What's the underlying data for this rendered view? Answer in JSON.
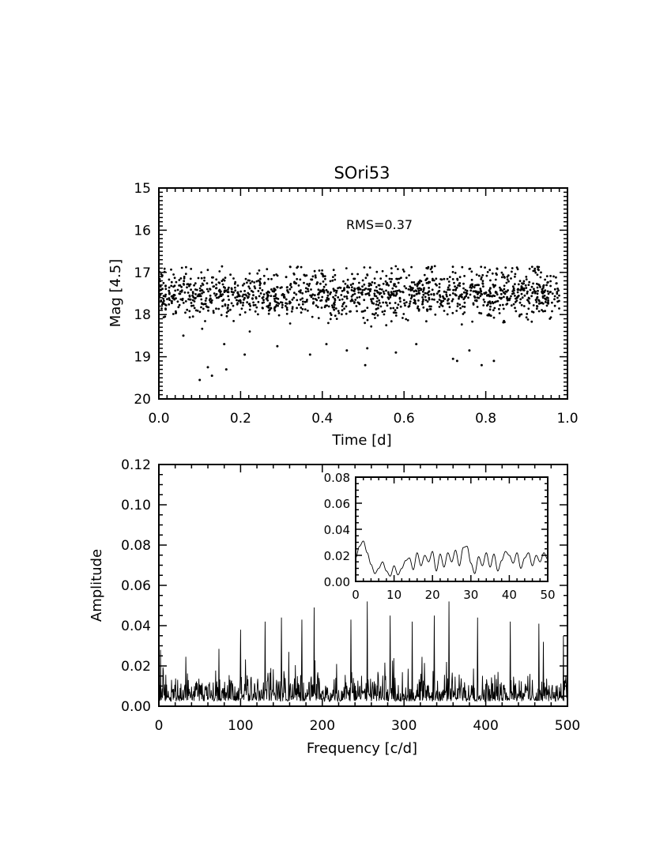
{
  "chart_data": [
    {
      "type": "scatter",
      "title": "SOri53",
      "xlabel": "Time [d]",
      "ylabel": "Mag [4.5]",
      "xlim": [
        0.0,
        1.0
      ],
      "ylim": [
        20,
        15
      ],
      "y_inverted": true,
      "x_ticks": [
        "0.0",
        "0.2",
        "0.4",
        "0.6",
        "0.8",
        "1.0"
      ],
      "y_ticks": [
        "15",
        "16",
        "17",
        "18",
        "19",
        "20"
      ],
      "annotation": "RMS=0.37",
      "series": [
        {
          "points_summary": {
            "count": 1400,
            "x_range": [
              0.0,
              0.98
            ],
            "mag_center": 17.5,
            "mag_core_range": [
              17.0,
              18.0
            ]
          },
          "outliers": [
            [
              0.1,
              19.55
            ],
            [
              0.12,
              19.25
            ],
            [
              0.13,
              19.45
            ],
            [
              0.165,
              19.3
            ],
            [
              0.21,
              18.95
            ],
            [
              0.16,
              18.7
            ],
            [
              0.29,
              18.75
            ],
            [
              0.37,
              18.95
            ],
            [
              0.46,
              18.85
            ],
            [
              0.505,
              19.2
            ],
            [
              0.51,
              18.8
            ],
            [
              0.58,
              18.9
            ],
            [
              0.72,
              19.05
            ],
            [
              0.73,
              19.1
            ],
            [
              0.76,
              18.85
            ],
            [
              0.79,
              19.2
            ],
            [
              0.82,
              19.1
            ],
            [
              0.63,
              18.7
            ],
            [
              0.41,
              18.7
            ],
            [
              0.06,
              18.5
            ]
          ]
        }
      ]
    },
    {
      "type": "line",
      "xlabel": "Frequency [c/d]",
      "ylabel": "Amplitude",
      "xlim": [
        0,
        500
      ],
      "ylim": [
        0.0,
        0.12
      ],
      "x_ticks": [
        "0",
        "100",
        "200",
        "300",
        "400",
        "500"
      ],
      "y_ticks": [
        "0.00",
        "0.02",
        "0.04",
        "0.06",
        "0.08",
        "0.10",
        "0.12"
      ],
      "series": [
        {
          "x_range": [
            0,
            500
          ],
          "amplitude_typical": 0.01,
          "peaks": [
            [
              2,
              0.028
            ],
            [
              100,
              0.038
            ],
            [
              130,
              0.042
            ],
            [
              150,
              0.044
            ],
            [
              175,
              0.043
            ],
            [
              190,
              0.049
            ],
            [
              235,
              0.043
            ],
            [
              255,
              0.052
            ],
            [
              283,
              0.045
            ],
            [
              310,
              0.042
            ],
            [
              337,
              0.045
            ],
            [
              355,
              0.052
            ],
            [
              390,
              0.044
            ],
            [
              430,
              0.042
            ],
            [
              465,
              0.041
            ],
            [
              495,
              0.035
            ]
          ]
        }
      ]
    },
    {
      "type": "line",
      "inset": true,
      "xlim": [
        0,
        50
      ],
      "ylim": [
        0.0,
        0.08
      ],
      "x_ticks": [
        "0",
        "10",
        "20",
        "30",
        "40",
        "50"
      ],
      "y_ticks": [
        "0.00",
        "0.02",
        "0.04",
        "0.06",
        "0.08"
      ],
      "series": [
        {
          "x": [
            0,
            1,
            2,
            3,
            4,
            5,
            6,
            7,
            8,
            9,
            10,
            11,
            12,
            13,
            14,
            15,
            16,
            17,
            18,
            19,
            20,
            21,
            22,
            23,
            24,
            25,
            26,
            27,
            28,
            29,
            30,
            31,
            32,
            33,
            34,
            35,
            36,
            37,
            38,
            39,
            40,
            41,
            42,
            43,
            44,
            45,
            46,
            47,
            48,
            49,
            50
          ],
          "y": [
            0.018,
            0.027,
            0.031,
            0.022,
            0.013,
            0.006,
            0.01,
            0.015,
            0.008,
            0.004,
            0.012,
            0.005,
            0.01,
            0.016,
            0.018,
            0.009,
            0.022,
            0.012,
            0.02,
            0.015,
            0.023,
            0.008,
            0.021,
            0.011,
            0.022,
            0.015,
            0.024,
            0.012,
            0.026,
            0.027,
            0.014,
            0.006,
            0.019,
            0.012,
            0.022,
            0.011,
            0.021,
            0.008,
            0.016,
            0.023,
            0.02,
            0.014,
            0.022,
            0.01,
            0.018,
            0.022,
            0.012,
            0.02,
            0.015,
            0.022,
            0.017
          ]
        }
      ]
    }
  ]
}
